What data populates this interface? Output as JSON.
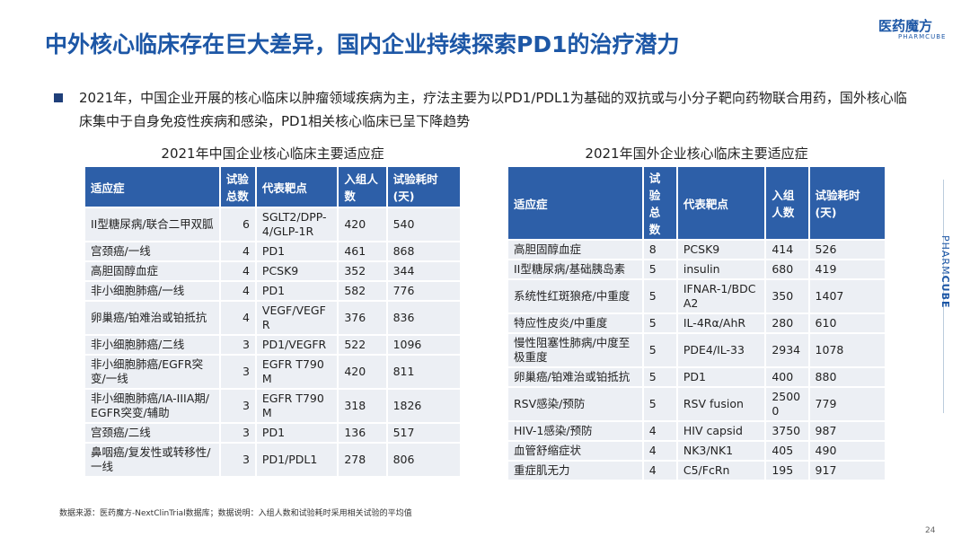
{
  "header": {
    "title": "中外核心临床存在巨大差异，国内企业持续探索PD1的治疗潜力",
    "logo": "医药魔方",
    "logo_sub": "PHARMCUBE"
  },
  "bullet": "2021年，中国企业开展的核心临床以肿瘤领域疾病为主，疗法主要为以PD1/PDL1为基础的双抗或与小分子靶向药物联合用药，国外核心临床集中于自身免疫性疾病和感染，PD1相关核心临床已呈下降趋势",
  "tables": [
    {
      "title": "2021年中国企业核心临床主要适应症",
      "headers": [
        "适应症",
        "试验总数",
        "代表靶点",
        "入组人数",
        "试验耗时(天)"
      ],
      "rows": [
        [
          "II型糖尿病/联合二甲双胍",
          "6",
          "SGLT2/DPP-4/GLP-1R",
          "420",
          "540"
        ],
        [
          "宫颈癌/一线",
          "4",
          "PD1",
          "461",
          "868"
        ],
        [
          "高胆固醇血症",
          "4",
          "PCSK9",
          "352",
          "344"
        ],
        [
          "非小细胞肺癌/一线",
          "4",
          "PD1",
          "582",
          "776"
        ],
        [
          "卵巢癌/铂难治或铂抵抗",
          "4",
          "VEGF/VEGFR",
          "376",
          "836"
        ],
        [
          "非小细胞肺癌/二线",
          "3",
          "PD1/VEGFR",
          "522",
          "1096"
        ],
        [
          "非小细胞肺癌/EGFR突变/一线",
          "3",
          "EGFR T790M",
          "420",
          "811"
        ],
        [
          "非小细胞肺癌/IA-IIIA期/EGFR突变/辅助",
          "3",
          "EGFR T790M",
          "318",
          "1826"
        ],
        [
          "宫颈癌/二线",
          "3",
          "PD1",
          "136",
          "517"
        ],
        [
          "鼻咽癌/复发性或转移性/一线",
          "3",
          "PD1/PDL1",
          "278",
          "806"
        ]
      ]
    },
    {
      "title": "2021年国外企业核心临床主要适应症",
      "headers": [
        "适应症",
        "试验总数",
        "代表靶点",
        "入组人数",
        "试验耗时(天)"
      ],
      "rows": [
        [
          "高胆固醇血症",
          "8",
          "PCSK9",
          "414",
          "526"
        ],
        [
          "II型糖尿病/基础胰岛素",
          "5",
          "insulin",
          "680",
          "419"
        ],
        [
          "系统性红斑狼疮/中重度",
          "5",
          "IFNAR-1/BDCA2",
          "350",
          "1407"
        ],
        [
          "特应性皮炎/中重度",
          "5",
          "IL-4Rα/AhR",
          "280",
          "610"
        ],
        [
          "慢性阻塞性肺病/中度至极重度",
          "5",
          "PDE4/IL-33",
          "2934",
          "1078"
        ],
        [
          "卵巢癌/铂难治或铂抵抗",
          "5",
          "PD1",
          "400",
          "880"
        ],
        [
          "RSV感染/预防",
          "5",
          "RSV fusion",
          "25000",
          "779"
        ],
        [
          "HIV-1感染/预防",
          "4",
          "HIV capsid",
          "3750",
          "987"
        ],
        [
          "血管舒缩症状",
          "4",
          "NK3/NK1",
          "405",
          "490"
        ],
        [
          "重症肌无力",
          "4",
          "C5/FcRn",
          "195",
          "917"
        ]
      ]
    }
  ],
  "footer": {
    "source": "数据来源：医药魔方-NextClinTrial数据库；数据说明：入组人数和试验耗时采用相关试验的平均值",
    "page": "24",
    "side_a": "PHARM",
    "side_b": "CUBE"
  }
}
